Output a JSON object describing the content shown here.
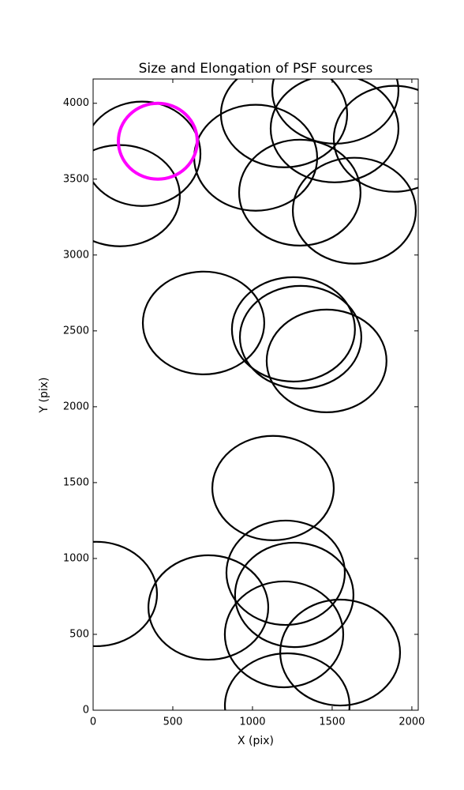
{
  "chart_data": {
    "type": "ellipse",
    "title": "Size and Elongation of PSF sources",
    "x_label": "X (pix)",
    "y_label": "Y (pix)",
    "xlim": [
      0,
      2040
    ],
    "ylim": [
      0,
      4160
    ],
    "xticks": [
      0,
      500,
      1000,
      1500,
      2000
    ],
    "yticks": [
      0,
      500,
      1000,
      1500,
      2000,
      2500,
      3000,
      3500,
      4000
    ],
    "ellipses": [
      {
        "x": 307,
        "y": 3667,
        "width": 733,
        "height": 688,
        "color": "#000000"
      },
      {
        "x": 168,
        "y": 3391,
        "width": 752,
        "height": 667,
        "color": "#000000"
      },
      {
        "x": 1198,
        "y": 3927,
        "width": 792,
        "height": 698,
        "color": "#000000"
      },
      {
        "x": 1020,
        "y": 3641,
        "width": 772,
        "height": 698,
        "color": "#000000"
      },
      {
        "x": 1520,
        "y": 4083,
        "width": 792,
        "height": 698,
        "color": "#000000"
      },
      {
        "x": 1515,
        "y": 3833,
        "width": 802,
        "height": 708,
        "color": "#000000"
      },
      {
        "x": 1891,
        "y": 3766,
        "width": 762,
        "height": 698,
        "color": "#000000"
      },
      {
        "x": 1297,
        "y": 3411,
        "width": 762,
        "height": 698,
        "color": "#000000"
      },
      {
        "x": 1639,
        "y": 3292,
        "width": 772,
        "height": 698,
        "color": "#000000"
      },
      {
        "x": 693,
        "y": 2552,
        "width": 762,
        "height": 677,
        "color": "#000000"
      },
      {
        "x": 1257,
        "y": 2510,
        "width": 772,
        "height": 688,
        "color": "#000000"
      },
      {
        "x": 1302,
        "y": 2458,
        "width": 762,
        "height": 677,
        "color": "#000000"
      },
      {
        "x": 1465,
        "y": 2302,
        "width": 752,
        "height": 677,
        "color": "#000000"
      },
      {
        "x": 1129,
        "y": 1464,
        "width": 762,
        "height": 688,
        "color": "#000000"
      },
      {
        "x": 20,
        "y": 766,
        "width": 762,
        "height": 688,
        "color": "#000000"
      },
      {
        "x": 723,
        "y": 677,
        "width": 752,
        "height": 688,
        "color": "#000000"
      },
      {
        "x": 1208,
        "y": 906,
        "width": 743,
        "height": 688,
        "color": "#000000"
      },
      {
        "x": 1262,
        "y": 760,
        "width": 743,
        "height": 688,
        "color": "#000000"
      },
      {
        "x": 1198,
        "y": 500,
        "width": 743,
        "height": 698,
        "color": "#000000"
      },
      {
        "x": 1550,
        "y": 380,
        "width": 752,
        "height": 698,
        "color": "#000000"
      },
      {
        "x": 1218,
        "y": 31,
        "width": 782,
        "height": 688,
        "color": "#000000"
      },
      {
        "x": 406,
        "y": 3750,
        "width": 495,
        "height": 500,
        "color": "#ff00ff"
      }
    ]
  }
}
